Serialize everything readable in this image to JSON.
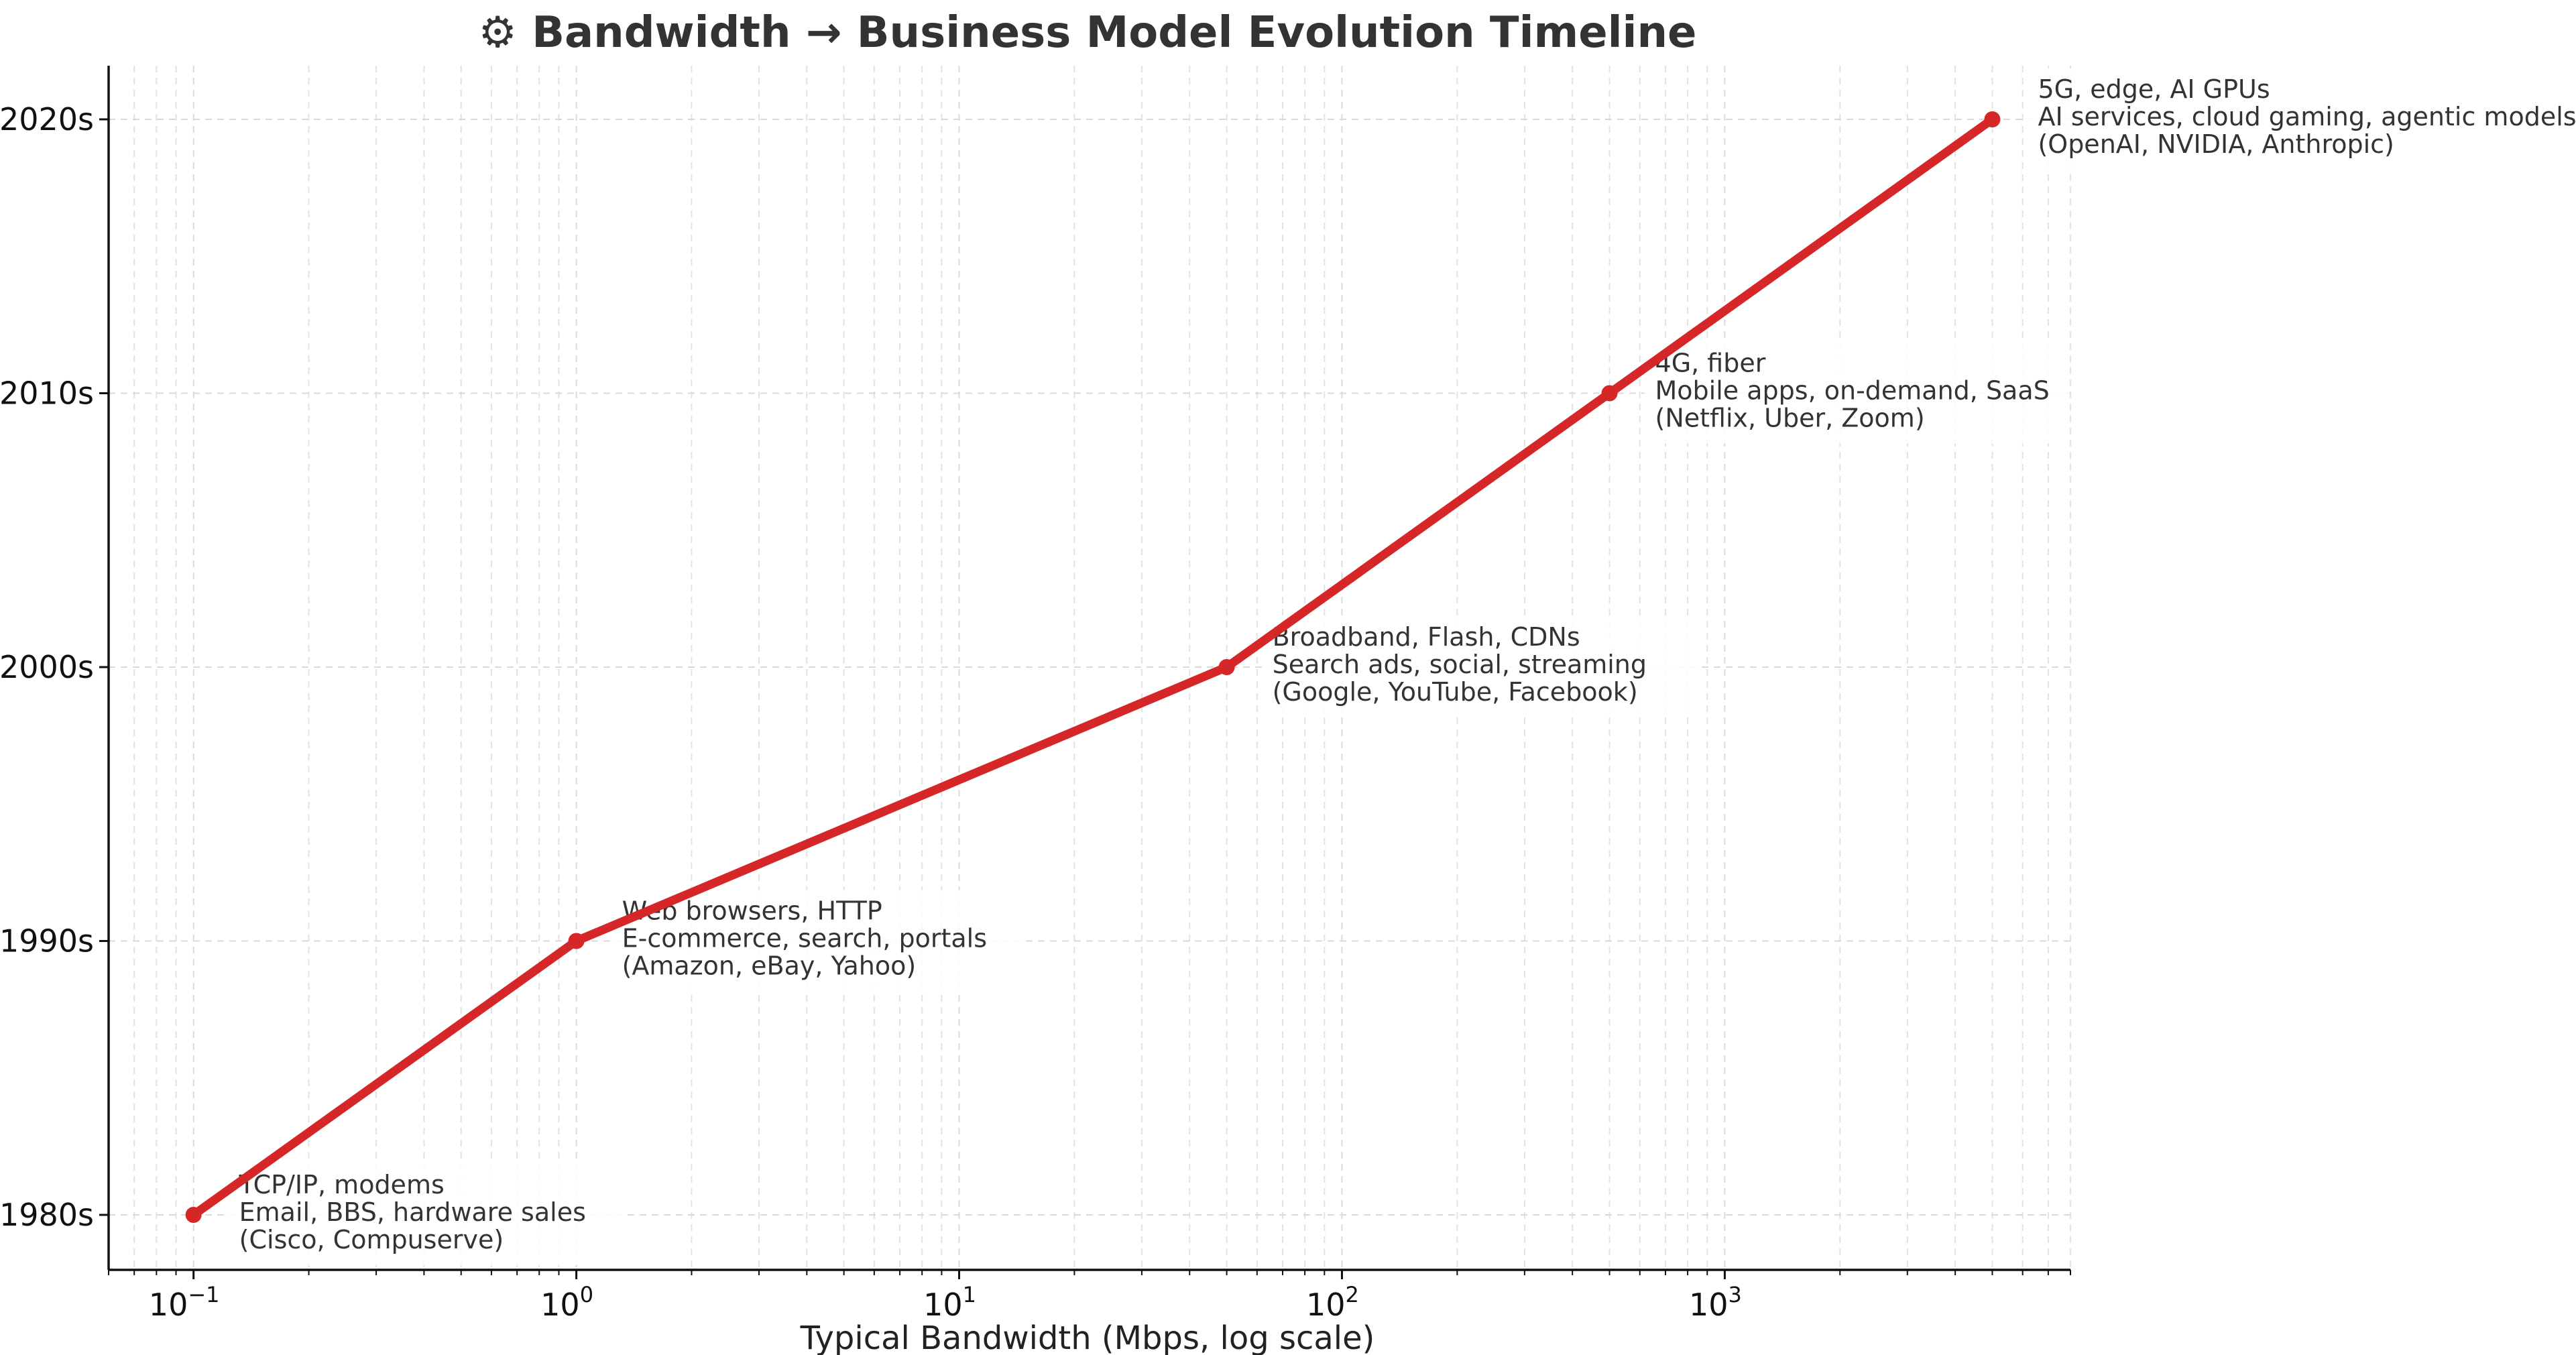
{
  "chart_data": {
    "type": "line",
    "title": "⚙ Bandwidth → Business Model Evolution Timeline",
    "xlabel": "Typical Bandwidth (Mbps, log scale)",
    "ylabel": "",
    "x_scale": "log",
    "xlim": [
      0.06,
      8000
    ],
    "x_ticks": [
      {
        "value": 0.1,
        "base": "10",
        "exp": "−1"
      },
      {
        "value": 1,
        "base": "10",
        "exp": "0"
      },
      {
        "value": 10,
        "base": "10",
        "exp": "1"
      },
      {
        "value": 100,
        "base": "10",
        "exp": "2"
      },
      {
        "value": 1000,
        "base": "10",
        "exp": "3"
      }
    ],
    "categories": [
      "1980s",
      "1990s",
      "2000s",
      "2010s",
      "2020s"
    ],
    "series": [
      {
        "name": "Bandwidth timeline",
        "color": "#d62728",
        "points": [
          {
            "x": 0.1,
            "y": "1980s",
            "annotation": [
              "TCP/IP, modems",
              "Email, BBS, hardware sales",
              "(Cisco, Compuserve)"
            ]
          },
          {
            "x": 1,
            "y": "1990s",
            "annotation": [
              "Web browsers, HTTP",
              "E-commerce, search, portals",
              "(Amazon, eBay, Yahoo)"
            ]
          },
          {
            "x": 50,
            "y": "2000s",
            "annotation": [
              "Broadband, Flash, CDNs",
              "Search ads, social, streaming",
              "(Google, YouTube, Facebook)"
            ]
          },
          {
            "x": 500,
            "y": "2010s",
            "annotation": [
              "4G, fiber",
              "Mobile apps, on-demand, SaaS",
              "(Netflix, Uber, Zoom)"
            ]
          },
          {
            "x": 5000,
            "y": "2020s",
            "annotation": [
              "5G, edge, AI GPUs",
              "AI services, cloud gaming, agentic models",
              "(OpenAI, NVIDIA, Anthropic)"
            ]
          }
        ]
      }
    ],
    "grid": true
  }
}
